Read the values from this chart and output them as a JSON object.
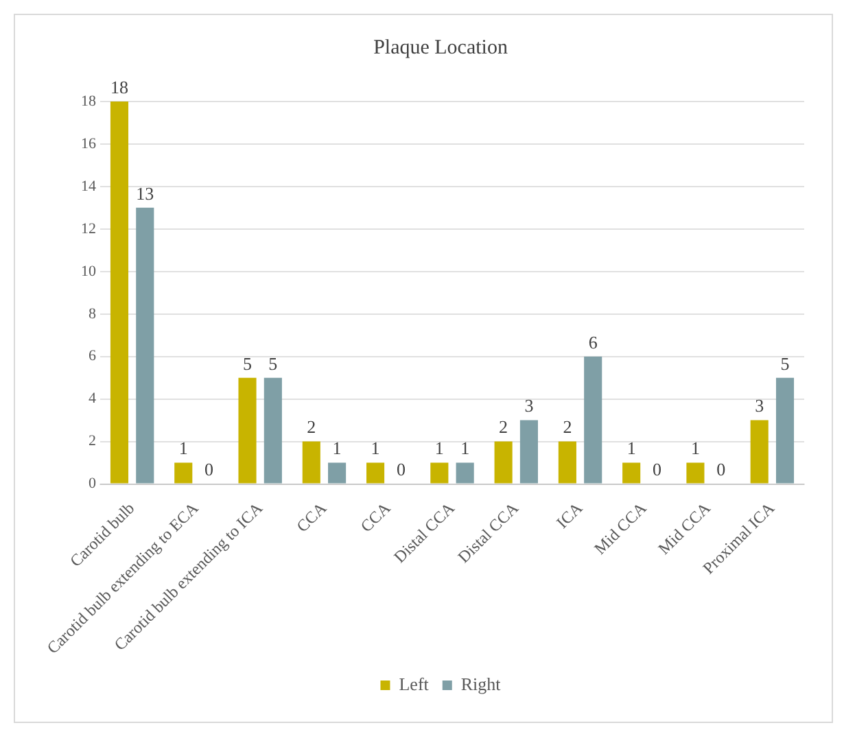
{
  "chart_data": {
    "type": "bar",
    "title": "Plaque Location",
    "categories": [
      "Carotid bulb",
      "Carotid bulb extending to ECA",
      "Carotid bulb extending to ICA",
      "CCA",
      "CCA",
      "Distal CCA",
      "Distal CCA",
      "ICA",
      "Mid CCA",
      "Mid CCA",
      "Proximal ICA"
    ],
    "series": [
      {
        "name": "Left",
        "color": "#c8b400",
        "values": [
          18,
          1,
          5,
          2,
          1,
          1,
          2,
          2,
          1,
          1,
          3
        ]
      },
      {
        "name": "Right",
        "color": "#7f9fa6",
        "values": [
          13,
          0,
          5,
          1,
          0,
          1,
          3,
          6,
          0,
          0,
          5
        ]
      }
    ],
    "ylim": [
      0,
      18
    ],
    "yticks": [
      0,
      2,
      4,
      6,
      8,
      10,
      12,
      14,
      16,
      18
    ],
    "grid": "y",
    "legend": "bottom",
    "data_labels": true
  }
}
